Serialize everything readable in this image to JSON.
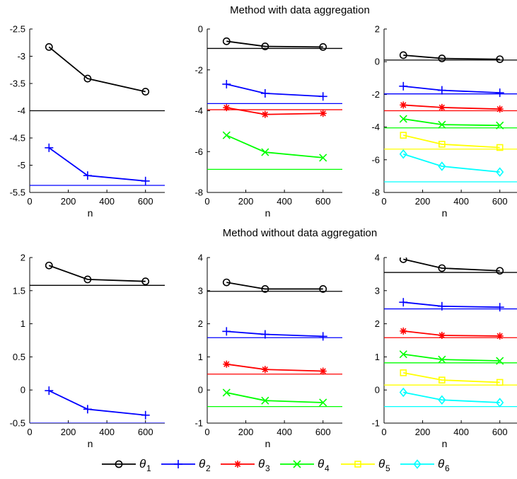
{
  "figure": {
    "row_titles": [
      "Method with data aggregation",
      "Method without data aggregation"
    ]
  },
  "legend": [
    {
      "label": "θ",
      "sub": "1",
      "color": "#000000",
      "marker": "circle"
    },
    {
      "label": "θ",
      "sub": "2",
      "color": "#0000ff",
      "marker": "plus"
    },
    {
      "label": "θ",
      "sub": "3",
      "color": "#ff0000",
      "marker": "asterisk"
    },
    {
      "label": "θ",
      "sub": "4",
      "color": "#00ff00",
      "marker": "cross"
    },
    {
      "label": "θ",
      "sub": "5",
      "color": "#ffff00",
      "marker": "square"
    },
    {
      "label": "θ",
      "sub": "6",
      "color": "#00ffff",
      "marker": "diamond"
    }
  ],
  "chart_data": [
    {
      "type": "line",
      "title": "Method with data aggregation",
      "xlabel": "n",
      "x": [
        100,
        300,
        600
      ],
      "xlim": [
        0,
        700
      ],
      "xticks": [
        0,
        200,
        400,
        600
      ],
      "ylim": [
        -5.5,
        -2.5
      ],
      "yticks": [
        -5.5,
        -5,
        -4.5,
        -4,
        -3.5,
        -3,
        -2.5
      ],
      "ytick_labels": [
        "-5.5",
        "-5",
        "-4.5",
        "-4",
        "-3.5",
        "-3",
        "-2.5"
      ],
      "series": [
        {
          "name": "θ1",
          "values": [
            -2.83,
            -3.41,
            -3.65
          ],
          "true_value": -4.0
        },
        {
          "name": "θ2",
          "values": [
            -4.68,
            -5.19,
            -5.29
          ],
          "true_value": -5.37
        }
      ]
    },
    {
      "type": "line",
      "xlabel": "n",
      "x": [
        100,
        300,
        600
      ],
      "xlim": [
        0,
        700
      ],
      "xticks": [
        0,
        200,
        400,
        600
      ],
      "ylim": [
        -8,
        0
      ],
      "yticks": [
        -8,
        -6,
        -4,
        -2,
        0
      ],
      "ytick_labels": [
        "-8",
        "-6",
        "-4",
        "-2",
        "0"
      ],
      "series": [
        {
          "name": "θ1",
          "values": [
            -0.6,
            -0.85,
            -0.88
          ],
          "true_value": -0.95
        },
        {
          "name": "θ2",
          "values": [
            -2.7,
            -3.15,
            -3.3
          ],
          "true_value": -3.65
        },
        {
          "name": "θ3",
          "values": [
            -3.85,
            -4.18,
            -4.13
          ],
          "true_value": -3.95
        },
        {
          "name": "θ4",
          "values": [
            -5.2,
            -6.03,
            -6.3
          ],
          "true_value": -6.87
        }
      ]
    },
    {
      "type": "line",
      "xlabel": "n",
      "x": [
        100,
        300,
        600
      ],
      "xlim": [
        0,
        700
      ],
      "xticks": [
        0,
        200,
        400,
        600
      ],
      "ylim": [
        -8,
        2
      ],
      "yticks": [
        -8,
        -6,
        -4,
        -2,
        0,
        2
      ],
      "ytick_labels": [
        "-8",
        "-6",
        "-4",
        "-2",
        "0",
        "2"
      ],
      "series": [
        {
          "name": "θ1",
          "values": [
            0.4,
            0.2,
            0.15
          ],
          "true_value": 0.1
        },
        {
          "name": "θ2",
          "values": [
            -1.5,
            -1.75,
            -1.9
          ],
          "true_value": -1.97
        },
        {
          "name": "θ3",
          "values": [
            -2.65,
            -2.8,
            -2.9
          ],
          "true_value": -3.0
        },
        {
          "name": "θ4",
          "values": [
            -3.5,
            -3.85,
            -3.9
          ],
          "true_value": -4.05
        },
        {
          "name": "θ5",
          "values": [
            -4.5,
            -5.05,
            -5.25
          ],
          "true_value": -5.35
        },
        {
          "name": "θ6",
          "values": [
            -5.65,
            -6.4,
            -6.75
          ],
          "true_value": -7.35
        }
      ]
    },
    {
      "type": "line",
      "title": "Method without data aggregation",
      "xlabel": "n",
      "x": [
        100,
        300,
        600
      ],
      "xlim": [
        0,
        700
      ],
      "xticks": [
        0,
        200,
        400,
        600
      ],
      "ylim": [
        -0.5,
        2
      ],
      "yticks": [
        -0.5,
        0,
        0.5,
        1,
        1.5,
        2
      ],
      "ytick_labels": [
        "-0.5",
        "0",
        "0.5",
        "1",
        "1.5",
        "2"
      ],
      "series": [
        {
          "name": "θ1",
          "values": [
            1.88,
            1.67,
            1.64
          ],
          "true_value": 1.58
        },
        {
          "name": "θ2",
          "values": [
            -0.01,
            -0.29,
            -0.38
          ],
          "true_value": -0.5
        }
      ]
    },
    {
      "type": "line",
      "xlabel": "n",
      "x": [
        100,
        300,
        600
      ],
      "xlim": [
        0,
        700
      ],
      "xticks": [
        0,
        200,
        400,
        600
      ],
      "ylim": [
        -1,
        4
      ],
      "yticks": [
        -1,
        0,
        1,
        2,
        3,
        4
      ],
      "ytick_labels": [
        "-1",
        "0",
        "1",
        "2",
        "3",
        "4"
      ],
      "series": [
        {
          "name": "θ1",
          "values": [
            3.25,
            3.05,
            3.05
          ],
          "true_value": 2.98
        },
        {
          "name": "θ2",
          "values": [
            1.77,
            1.68,
            1.62
          ],
          "true_value": 1.58
        },
        {
          "name": "θ3",
          "values": [
            0.78,
            0.62,
            0.57
          ],
          "true_value": 0.48
        },
        {
          "name": "θ4",
          "values": [
            -0.08,
            -0.32,
            -0.38
          ],
          "true_value": -0.5
        }
      ]
    },
    {
      "type": "line",
      "xlabel": "n",
      "x": [
        100,
        300,
        600
      ],
      "xlim": [
        0,
        700
      ],
      "xticks": [
        0,
        200,
        400,
        600
      ],
      "ylim": [
        -1,
        4
      ],
      "yticks": [
        -1,
        0,
        1,
        2,
        3,
        4
      ],
      "ytick_labels": [
        "-1",
        "0",
        "1",
        "2",
        "3",
        "4"
      ],
      "series": [
        {
          "name": "θ1",
          "values": [
            3.95,
            3.68,
            3.6
          ],
          "true_value": 3.55
        },
        {
          "name": "θ2",
          "values": [
            2.65,
            2.53,
            2.5
          ],
          "true_value": 2.45
        },
        {
          "name": "θ3",
          "values": [
            1.78,
            1.65,
            1.63
          ],
          "true_value": 1.58
        },
        {
          "name": "θ4",
          "values": [
            1.08,
            0.92,
            0.88
          ],
          "true_value": 0.82
        },
        {
          "name": "θ5",
          "values": [
            0.52,
            0.3,
            0.23
          ],
          "true_value": 0.15
        },
        {
          "name": "θ6",
          "values": [
            -0.07,
            -0.3,
            -0.38
          ],
          "true_value": -0.5
        }
      ]
    }
  ]
}
